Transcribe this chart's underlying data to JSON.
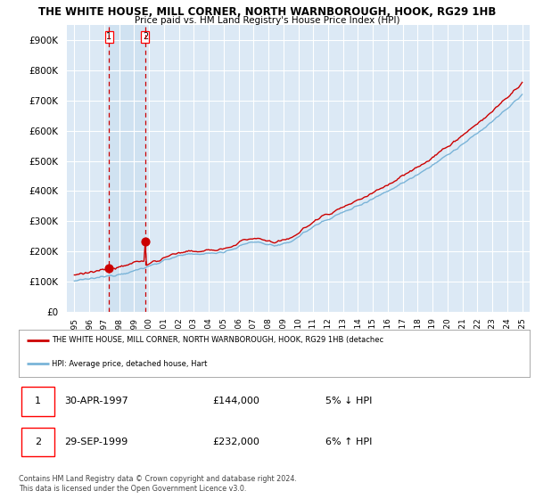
{
  "title_line1": "THE WHITE HOUSE, MILL CORNER, NORTH WARNBOROUGH, HOOK, RG29 1HB",
  "title_line2": "Price paid vs. HM Land Registry's House Price Index (HPI)",
  "background_color": "#dce9f5",
  "grid_color": "#ffffff",
  "sale1_date_label": "30-APR-1997",
  "sale1_price": 144000,
  "sale2_date_label": "29-SEP-1999",
  "sale2_price": 232000,
  "sale1_pct": "5% ↓ HPI",
  "sale2_pct": "6% ↑ HPI",
  "legend_line1": "THE WHITE HOUSE, MILL CORNER, NORTH WARNBOROUGH, HOOK, RG29 1HB (detachec",
  "legend_line2": "HPI: Average price, detached house, Hart",
  "footer": "Contains HM Land Registry data © Crown copyright and database right 2024.\nThis data is licensed under the Open Government Licence v3.0.",
  "sale1_x": 1997.33,
  "sale2_x": 1999.75,
  "hpi_color": "#7ab4d8",
  "price_color": "#cc0000",
  "vline_color": "#cc0000",
  "shade_color": "#cce0f0",
  "ylim_max": 950000,
  "ylim_min": 0,
  "xlim_min": 1994.5,
  "xlim_max": 2025.5
}
